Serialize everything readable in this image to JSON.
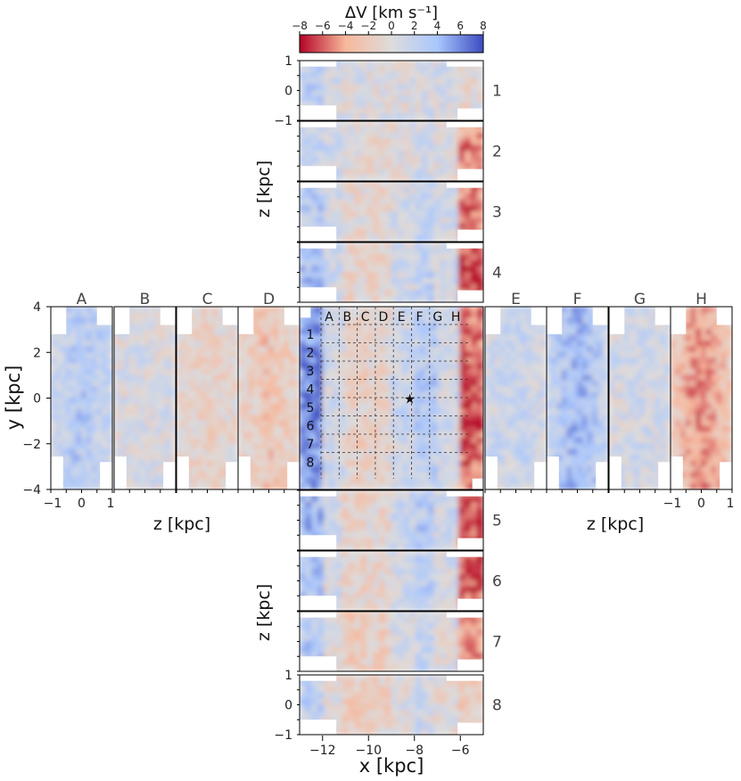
{
  "chart_data": {
    "type": "heatmap",
    "title": "",
    "colorbar": {
      "label": "ΔV [km s⁻¹]",
      "range": [
        -8,
        8
      ],
      "ticks": [
        "−8",
        "−6",
        "−4",
        "−2",
        "0",
        "2",
        "4",
        "6",
        "8"
      ],
      "colors": [
        "#b40426",
        "#f7b89c",
        "#dddcdc",
        "#aac7fd",
        "#3b4cc0"
      ]
    },
    "main_panel": {
      "xlabel": "x [kpc]",
      "ylabel": "y [kpc]",
      "xlim": [
        -13,
        -5
      ],
      "ylim": [
        -4,
        4
      ],
      "xticks": [
        "−12",
        "−10",
        "−8",
        "−6"
      ],
      "yticks": [
        "4",
        "2",
        "0",
        "−2",
        "−4"
      ],
      "column_labels": [
        "A",
        "B",
        "C",
        "D",
        "E",
        "F",
        "G",
        "H"
      ],
      "row_labels": [
        "1",
        "2",
        "3",
        "4",
        "5",
        "6",
        "7",
        "8"
      ],
      "sun_marker": {
        "x": -8.2,
        "y": 0
      },
      "trend": "ΔV negative (red) near the outer disk at x ≈ −6 to −5 kpc and positive (blue) toward x ≈ −13 to −11 kpc"
    },
    "xz_panels": {
      "ylabel": "z [kpc]",
      "zlim": [
        -1,
        1
      ],
      "zticks": [
        "1",
        "0",
        "−1"
      ],
      "rows": [
        {
          "label": "1",
          "mean_dV": [
            2.5,
            1,
            0.5,
            0,
            0.3,
            0.8,
            0.5,
            -0.5
          ]
        },
        {
          "label": "2",
          "mean_dV": [
            2,
            1.2,
            0,
            -0.8,
            0,
            1,
            0,
            -5
          ]
        },
        {
          "label": "3",
          "mean_dV": [
            3,
            1,
            -0.5,
            -1,
            1,
            2,
            1,
            -6
          ]
        },
        {
          "label": "4",
          "mean_dV": [
            4,
            1.5,
            -1,
            -1.5,
            1,
            2.5,
            1,
            -7
          ]
        },
        {
          "label": "5",
          "mean_dV": [
            4.5,
            1,
            -1.5,
            -1,
            1.5,
            3,
            1,
            -7
          ]
        },
        {
          "label": "6",
          "mean_dV": [
            3.5,
            0.5,
            -1.5,
            -1,
            1,
            2.5,
            0.5,
            -7
          ]
        },
        {
          "label": "7",
          "mean_dV": [
            3,
            0,
            -2,
            -1.5,
            0.5,
            2,
            0,
            -5
          ]
        },
        {
          "label": "8",
          "mean_dV": [
            2.5,
            -0.5,
            -2,
            -1.5,
            0,
            1,
            -0.5,
            -2
          ]
        }
      ]
    },
    "yz_panels": {
      "xlabel": "z [kpc]",
      "ylabel": "y [kpc]",
      "zlim": [
        -1,
        1
      ],
      "zticks": [
        "−1",
        "0",
        "1"
      ],
      "ylim": [
        -4,
        4
      ],
      "columns": [
        {
          "label": "A",
          "mean_dV": 2.5
        },
        {
          "label": "B",
          "mean_dV": 0.5
        },
        {
          "label": "C",
          "mean_dV": -1
        },
        {
          "label": "D",
          "mean_dV": -2
        },
        {
          "label": "E",
          "mean_dV": 1.5
        },
        {
          "label": "F",
          "mean_dV": 3.5
        },
        {
          "label": "G",
          "mean_dV": 1
        },
        {
          "label": "H",
          "mean_dV": -4
        }
      ]
    }
  }
}
